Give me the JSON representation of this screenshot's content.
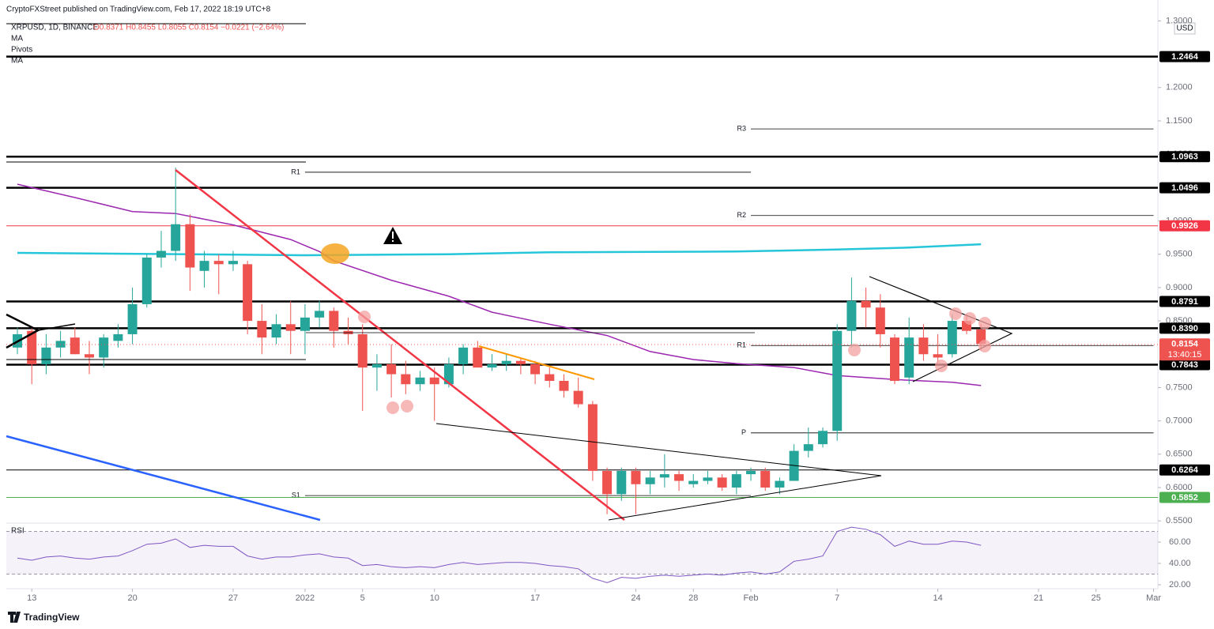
{
  "chart_data": {
    "type": "candlestick",
    "publisher": "CryptoFXStreet published on TradingView.com, Feb 17, 2022 18:19 UTC+8",
    "symbol": "XRPUSD, 1D, BINANCE",
    "ohlc": "O0.8371 H0.8455 L0.8055 C0.8154 −0.0221 (−2.64%)",
    "indicators": [
      "MA",
      "Pivots",
      "MA"
    ],
    "currency": "USD",
    "footer": "TradingView",
    "up_color": "#26a69a",
    "down_color": "#ef5350",
    "xlim": [
      -0.77,
      79.3
    ],
    "xticks": [
      {
        "value": 1,
        "label": "13"
      },
      {
        "value": 8,
        "label": "20"
      },
      {
        "value": 15,
        "label": "27"
      },
      {
        "value": 20,
        "label": "2022"
      },
      {
        "value": 24,
        "label": "5"
      },
      {
        "value": 29,
        "label": "10"
      },
      {
        "value": 36,
        "label": "17"
      },
      {
        "value": 43,
        "label": "24"
      },
      {
        "value": 47,
        "label": "28"
      },
      {
        "value": 51,
        "label": "Feb"
      },
      {
        "value": 57,
        "label": "7"
      },
      {
        "value": 64,
        "label": "14"
      },
      {
        "value": 71,
        "label": "21"
      },
      {
        "value": 75,
        "label": "25"
      },
      {
        "value": 79,
        "label": "Mar"
      }
    ],
    "ylim": [
      0.549,
      1.31
    ],
    "yticks": [
      {
        "value": 1.3,
        "label": "1.3000"
      },
      {
        "value": 1.2,
        "label": "1.2000"
      },
      {
        "value": 1.15,
        "label": "1.1500"
      },
      {
        "value": 1.1,
        "label": "1.1000"
      },
      {
        "value": 1.0,
        "label": "1.0000"
      },
      {
        "value": 0.95,
        "label": "0.9500"
      },
      {
        "value": 0.9,
        "label": "0.9000"
      },
      {
        "value": 0.85,
        "label": "0.8500"
      },
      {
        "value": 0.75,
        "label": "0.7500"
      },
      {
        "value": 0.7,
        "label": "0.7000"
      },
      {
        "value": 0.65,
        "label": "0.6500"
      },
      {
        "value": 0.6,
        "label": "0.6000"
      },
      {
        "value": 0.55,
        "label": "0.5500"
      }
    ],
    "open": [
      0.81,
      0.835,
      0.785,
      0.81,
      0.825,
      0.8,
      0.795,
      0.82,
      0.83,
      0.875,
      0.945,
      0.955,
      0.995,
      0.925,
      0.94,
      0.935,
      0.935,
      0.85,
      0.825,
      0.845,
      0.835,
      0.855,
      0.865,
      0.835,
      0.83,
      0.78,
      0.785,
      0.77,
      0.755,
      0.765,
      0.755,
      0.785,
      0.81,
      0.78,
      0.785,
      0.79,
      0.785,
      0.77,
      0.76,
      0.745,
      0.725,
      0.625,
      0.59,
      0.625,
      0.605,
      0.615,
      0.62,
      0.605,
      0.61,
      0.615,
      0.6,
      0.62,
      0.625,
      0.6,
      0.61,
      0.655,
      0.665,
      0.685,
      0.835,
      0.88,
      0.87,
      0.825,
      0.765,
      0.825,
      0.8,
      0.8,
      0.85,
      0.8371
    ],
    "high": [
      0.84,
      0.84,
      0.83,
      0.835,
      0.84,
      0.82,
      0.83,
      0.845,
      0.9,
      0.95,
      0.985,
      1.08,
      1.01,
      0.955,
      0.95,
      0.955,
      0.94,
      0.875,
      0.86,
      0.88,
      0.875,
      0.88,
      0.87,
      0.855,
      0.845,
      0.8,
      0.815,
      0.79,
      0.775,
      0.78,
      0.795,
      0.815,
      0.82,
      0.8,
      0.8,
      0.795,
      0.79,
      0.78,
      0.77,
      0.765,
      0.73,
      0.63,
      0.63,
      0.63,
      0.625,
      0.65,
      0.625,
      0.62,
      0.625,
      0.62,
      0.625,
      0.63,
      0.63,
      0.615,
      0.665,
      0.69,
      0.69,
      0.845,
      0.915,
      0.9,
      0.89,
      0.83,
      0.855,
      0.845,
      0.83,
      0.86,
      0.86,
      0.8455
    ],
    "low": [
      0.8,
      0.755,
      0.77,
      0.795,
      0.8,
      0.77,
      0.78,
      0.81,
      0.815,
      0.87,
      0.93,
      0.94,
      0.895,
      0.9,
      0.89,
      0.925,
      0.83,
      0.8,
      0.815,
      0.8,
      0.8,
      0.84,
      0.81,
      0.815,
      0.715,
      0.745,
      0.735,
      0.74,
      0.745,
      0.7,
      0.75,
      0.77,
      0.78,
      0.775,
      0.775,
      0.77,
      0.755,
      0.75,
      0.735,
      0.72,
      0.61,
      0.56,
      0.58,
      0.56,
      0.59,
      0.6,
      0.595,
      0.6,
      0.605,
      0.595,
      0.59,
      0.61,
      0.595,
      0.59,
      0.61,
      0.645,
      0.66,
      0.67,
      0.81,
      0.84,
      0.81,
      0.755,
      0.755,
      0.79,
      0.785,
      0.795,
      0.83,
      0.8055
    ],
    "close": [
      0.83,
      0.785,
      0.81,
      0.82,
      0.8,
      0.795,
      0.825,
      0.83,
      0.875,
      0.945,
      0.955,
      0.995,
      0.93,
      0.94,
      0.935,
      0.94,
      0.85,
      0.825,
      0.845,
      0.835,
      0.855,
      0.865,
      0.835,
      0.83,
      0.78,
      0.785,
      0.77,
      0.755,
      0.765,
      0.755,
      0.785,
      0.81,
      0.78,
      0.785,
      0.79,
      0.785,
      0.77,
      0.76,
      0.745,
      0.725,
      0.625,
      0.59,
      0.625,
      0.605,
      0.615,
      0.62,
      0.61,
      0.61,
      0.615,
      0.6,
      0.62,
      0.625,
      0.6,
      0.61,
      0.655,
      0.665,
      0.685,
      0.835,
      0.88,
      0.87,
      0.83,
      0.76,
      0.825,
      0.8,
      0.795,
      0.85,
      0.835,
      0.8154
    ],
    "last_price": 0.8154,
    "countdown": "13:40:15",
    "levels": [
      {
        "value": 1.2464,
        "color": "#000000",
        "style": "thick"
      },
      {
        "value": 1.0963,
        "color": "#000000",
        "style": "thick"
      },
      {
        "value": 1.0496,
        "color": "#000000",
        "style": "thick"
      },
      {
        "value": 0.9926,
        "color": "#f23645",
        "style": "thin"
      },
      {
        "value": 0.8791,
        "color": "#000000",
        "style": "thick"
      },
      {
        "value": {
          "value": 0.839,
          "label": "0.8390"
        },
        "color": "#000000",
        "style": "thick"
      },
      {
        "value": 0.7843,
        "color": "#000000",
        "style": "thick"
      },
      {
        "value": 0.6264,
        "color": "#000000",
        "style": "thin"
      },
      {
        "value": 0.5852,
        "color": "#4caf50",
        "style": "thin"
      }
    ],
    "pivots": [
      {
        "label": "R1",
        "value": 1.073,
        "start": 20,
        "end": 51
      },
      {
        "label": "S1",
        "value": 0.588,
        "start": 20,
        "end": 51
      },
      {
        "label": "R3",
        "value": 1.138,
        "start": 51,
        "end": 79
      },
      {
        "label": "R2",
        "value": 1.008,
        "start": 51,
        "end": 79
      },
      {
        "label": "R1",
        "value": 0.813,
        "start": 51,
        "end": 79
      },
      {
        "label": "P",
        "value": 0.682,
        "start": 51,
        "end": 79
      }
    ],
    "moving_averages": [
      {
        "name": "MA",
        "color": "#26c6da",
        "x": [
          0,
          20,
          30,
          37,
          50,
          57,
          62,
          67
        ],
        "values": [
          0.952,
          0.9485,
          0.95,
          0.953,
          0.954,
          0.957,
          0.96,
          0.965
        ]
      },
      {
        "name": "MA",
        "color": "#9c27b0",
        "x": [
          0,
          4,
          8,
          11,
          15,
          19,
          21,
          22,
          26,
          30,
          33,
          37,
          41,
          44,
          47,
          50,
          54,
          57,
          59,
          61,
          65,
          67
        ],
        "values": [
          1.055,
          1.035,
          1.014,
          1.011,
          0.994,
          0.972,
          0.954,
          0.94,
          0.911,
          0.887,
          0.863,
          0.845,
          0.828,
          0.804,
          0.792,
          0.786,
          0.78,
          0.768,
          0.765,
          0.762,
          0.758,
          0.753
        ]
      }
    ],
    "rsi": {
      "label": "RSI",
      "color": "#7e57c2",
      "ylim": [
        16.3,
        76.3
      ],
      "yticks": [
        {
          "value": 60,
          "label": "60.00"
        },
        {
          "value": 40,
          "label": "40.00"
        },
        {
          "value": 20,
          "label": "20.00"
        }
      ],
      "bands": [
        30,
        70
      ],
      "values": [
        45,
        43,
        46,
        47,
        45,
        44,
        46,
        47,
        52,
        58,
        59,
        63,
        55,
        57,
        56,
        56,
        47,
        44,
        46,
        46,
        48,
        49,
        46,
        45,
        38,
        39,
        37,
        36,
        37,
        36,
        39,
        41,
        39,
        40,
        41,
        41,
        40,
        38,
        37,
        35,
        26,
        22,
        27,
        26,
        28,
        29,
        28,
        29,
        30,
        29,
        31,
        32,
        30,
        32,
        42,
        44,
        47,
        70,
        74,
        72,
        67,
        56,
        61,
        58,
        58,
        61,
        60,
        57
      ]
    }
  }
}
